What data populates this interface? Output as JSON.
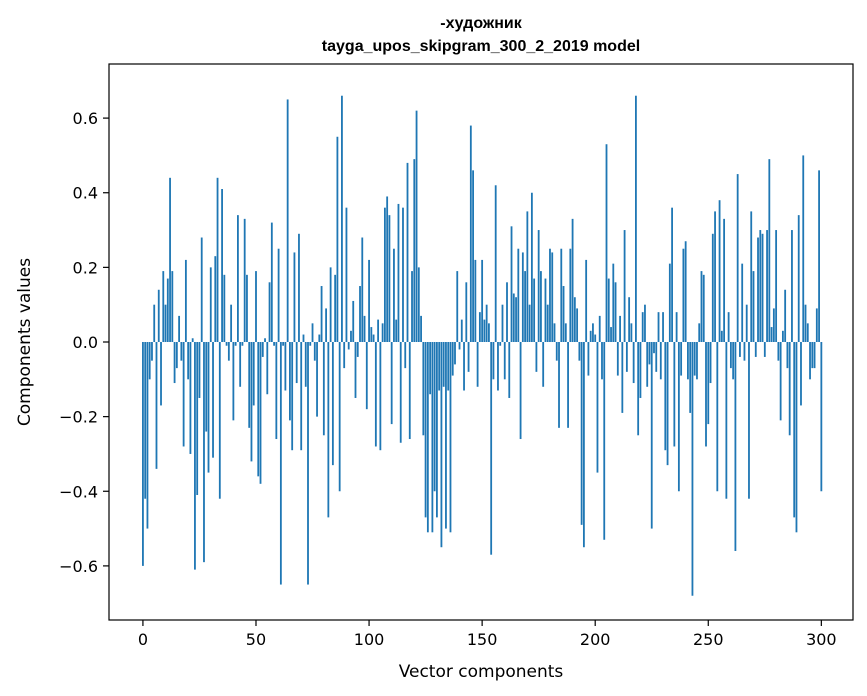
{
  "chart_data": {
    "type": "bar",
    "title": "-художник",
    "subtitle": "tayga_upos_skipgram_300_2_2019 model",
    "xlabel": "Vector components",
    "ylabel": "Components values",
    "xlim": [
      -15,
      314
    ],
    "ylim": [
      -0.745,
      0.745
    ],
    "xticks": [
      0,
      50,
      100,
      150,
      200,
      250,
      300
    ],
    "xtick_labels": [
      "0",
      "50",
      "100",
      "150",
      "200",
      "250",
      "300"
    ],
    "yticks": [
      -0.6,
      -0.4,
      -0.2,
      0.0,
      0.2,
      0.4,
      0.6
    ],
    "ytick_labels": [
      "−0.6",
      "−0.4",
      "−0.2",
      "0.0",
      "0.2",
      "0.4",
      "0.6"
    ],
    "grid": false,
    "bar_color": "#1f77b4",
    "values": [
      -0.6,
      -0.42,
      -0.5,
      -0.1,
      -0.05,
      0.1,
      -0.34,
      0.14,
      -0.17,
      0.19,
      0.1,
      0.17,
      0.44,
      0.19,
      -0.11,
      -0.07,
      0.07,
      -0.05,
      -0.28,
      0.22,
      -0.1,
      -0.3,
      0.01,
      -0.61,
      -0.41,
      -0.15,
      0.28,
      -0.59,
      -0.24,
      -0.35,
      0.2,
      -0.31,
      0.23,
      0.44,
      -0.42,
      0.41,
      0.18,
      -0.01,
      -0.05,
      0.1,
      -0.21,
      -0.01,
      0.34,
      -0.12,
      -0.01,
      0.33,
      0.18,
      -0.23,
      -0.32,
      -0.17,
      0.19,
      -0.36,
      -0.38,
      -0.04,
      0.01,
      -0.14,
      0.16,
      0.32,
      -0.01,
      -0.26,
      0.25,
      -0.65,
      -0.01,
      -0.13,
      0.65,
      -0.21,
      -0.29,
      0.24,
      -0.11,
      0.29,
      -0.29,
      0.02,
      -0.12,
      -0.65,
      -0.01,
      0.05,
      -0.05,
      -0.2,
      0.02,
      0.15,
      -0.25,
      0.09,
      -0.47,
      0.2,
      -0.33,
      0.18,
      0.55,
      -0.4,
      0.66,
      -0.07,
      0.36,
      -0.02,
      0.03,
      0.11,
      -0.15,
      -0.04,
      0.15,
      0.28,
      0.07,
      -0.18,
      0.22,
      0.04,
      0.02,
      -0.28,
      0.06,
      -0.29,
      0.05,
      0.36,
      0.39,
      0.34,
      -0.22,
      0.25,
      0.06,
      0.37,
      -0.27,
      0.36,
      -0.07,
      0.48,
      -0.26,
      0.19,
      0.49,
      0.62,
      0.2,
      0.07,
      -0.25,
      -0.47,
      -0.51,
      -0.14,
      -0.51,
      -0.4,
      -0.47,
      -0.13,
      -0.55,
      -0.12,
      -0.5,
      -0.13,
      -0.51,
      -0.09,
      -0.06,
      0.19,
      -0.02,
      0.06,
      -0.13,
      0.16,
      -0.08,
      0.58,
      0.46,
      0.22,
      -0.12,
      0.08,
      0.22,
      0.06,
      0.1,
      0.05,
      -0.57,
      -0.1,
      0.42,
      -0.13,
      -0.01,
      0.1,
      -0.1,
      0.16,
      -0.15,
      0.31,
      0.13,
      0.12,
      0.25,
      -0.26,
      0.24,
      0.19,
      0.35,
      0.1,
      0.4,
      0.17,
      -0.08,
      0.3,
      0.19,
      -0.12,
      0.17,
      0.1,
      0.25,
      0.24,
      0.05,
      -0.05,
      -0.23,
      0.25,
      0.15,
      0.05,
      -0.23,
      0.25,
      0.33,
      0.12,
      0.09,
      -0.05,
      -0.49,
      -0.55,
      0.22,
      -0.09,
      0.03,
      0.05,
      0.02,
      -0.35,
      0.07,
      -0.1,
      -0.53,
      0.53,
      0.17,
      0.04,
      0.21,
      0.16,
      -0.09,
      0.07,
      -0.19,
      0.3,
      -0.08,
      0.12,
      0.05,
      -0.11,
      0.66,
      -0.25,
      -0.15,
      0.08,
      0.1,
      -0.12,
      -0.06,
      -0.5,
      -0.03,
      -0.08,
      0.08,
      -0.1,
      0.08,
      -0.29,
      -0.33,
      0.21,
      0.36,
      -0.28,
      0.08,
      -0.4,
      -0.09,
      0.25,
      0.27,
      -0.1,
      -0.19,
      -0.68,
      -0.09,
      -0.1,
      0.05,
      0.19,
      0.18,
      -0.28,
      -0.22,
      -0.11,
      0.29,
      0.35,
      -0.4,
      0.38,
      0.03,
      0.33,
      -0.42,
      0.08,
      -0.07,
      -0.1,
      -0.56,
      0.45,
      -0.04,
      0.21,
      -0.05,
      0.1,
      -0.42,
      0.35,
      0.19,
      -0.04,
      0.28,
      0.3,
      0.29,
      -0.04,
      0.3,
      0.49,
      0.04,
      0.09,
      0.3,
      -0.05,
      -0.21,
      0.03,
      0.14,
      -0.07,
      -0.25,
      0.3,
      -0.47,
      -0.51,
      0.34,
      -0.17,
      0.5,
      0.1,
      0.05,
      -0.1,
      -0.07,
      -0.07,
      0.09,
      0.46,
      -0.4
    ]
  }
}
